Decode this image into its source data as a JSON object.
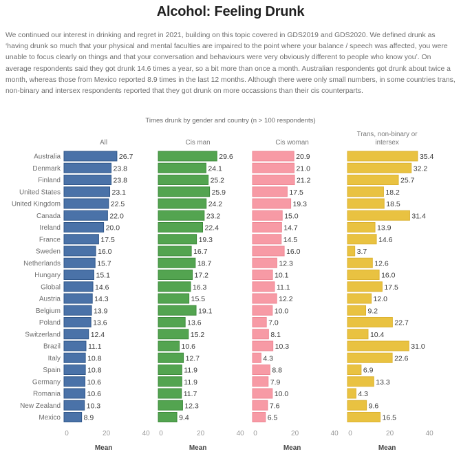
{
  "header": {
    "title": "Alcohol: Feeling Drunk",
    "intro": "We continued our interest in drinking and regret in 2021, building on this topic covered in GDS2019 and GDS2020. We defined drunk as ‘having drunk so much that your physical and mental faculties are impaired to the point where your balance / speech was affected, you were unable to focus clearly on things and that your conversation and behaviours were very obviously different to people who know you’. On average respondents said they got drunk 14.6 times a year, so a bit more than once a month. Australian respondents got drunk about twice a month, whereas those from Mexico reported 8.9 times in the last 12 months. Although there were only small numbers, in some countries trans, non-binary and intersex respondents reported that they got drunk on more occassions than their cis counterparts."
  },
  "chart_data": {
    "type": "bar",
    "orientation": "horizontal",
    "title": "Times drunk by gender and country (n > 100 respondents)",
    "xlabel": "Mean",
    "ylabel": "",
    "xlim": [
      0,
      40
    ],
    "xticks": [
      0,
      20,
      40
    ],
    "grid": false,
    "categories": [
      "Australia",
      "Denmark",
      "Finland",
      "United States",
      "United Kingdom",
      "Canada",
      "Ireland",
      "France",
      "Sweden",
      "Netherlands",
      "Hungary",
      "Global",
      "Austria",
      "Belgium",
      "Poland",
      "Switzerland",
      "Brazil",
      "Italy",
      "Spain",
      "Germany",
      "Romania",
      "New Zealand",
      "Mexico"
    ],
    "series": [
      {
        "name": "All",
        "color": "#4a72a8",
        "edge": "#2f5689",
        "values": [
          26.7,
          23.8,
          23.8,
          23.1,
          22.5,
          22.0,
          20.0,
          17.5,
          16.0,
          15.7,
          15.1,
          14.6,
          14.3,
          13.9,
          13.6,
          12.4,
          11.1,
          10.8,
          10.8,
          10.6,
          10.6,
          10.3,
          8.9
        ]
      },
      {
        "name": "Cis man",
        "color": "#53a450",
        "edge": "#3d8a3b",
        "values": [
          29.6,
          24.1,
          25.2,
          25.9,
          24.2,
          23.2,
          22.4,
          19.3,
          16.7,
          18.7,
          17.2,
          16.3,
          15.5,
          19.1,
          13.6,
          15.2,
          10.6,
          12.7,
          11.9,
          11.9,
          11.7,
          12.3,
          9.4
        ]
      },
      {
        "name": "Cis woman",
        "color": "#f79aa5",
        "edge": "#ee8794",
        "values": [
          20.9,
          21.0,
          21.2,
          17.5,
          19.3,
          15.0,
          14.7,
          14.5,
          16.0,
          12.3,
          10.1,
          11.1,
          12.2,
          10.0,
          7.0,
          8.1,
          10.3,
          4.3,
          8.8,
          7.9,
          10.0,
          7.6,
          6.5
        ]
      },
      {
        "name": "Trans, non-binary or intersex",
        "name_lines": [
          "Trans, non-binary or",
          "intersex"
        ],
        "color": "#e9c241",
        "edge": "#dcb230",
        "values": [
          35.4,
          32.2,
          25.7,
          18.2,
          18.5,
          31.4,
          13.9,
          14.6,
          3.7,
          12.6,
          16.0,
          17.5,
          12.0,
          9.2,
          22.7,
          10.4,
          31.0,
          22.6,
          6.9,
          13.3,
          4.3,
          9.6,
          16.5
        ]
      }
    ]
  }
}
